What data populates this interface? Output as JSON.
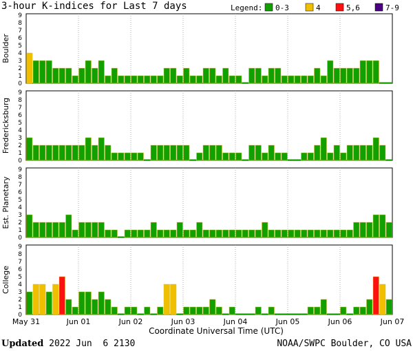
{
  "title": "3-hour K-indices for Last 7 days",
  "legend": {
    "label": "Legend:",
    "items": [
      {
        "label": "0-3",
        "color": "#11a000"
      },
      {
        "label": "4",
        "color": "#f0c000"
      },
      {
        "label": "5,6",
        "color": "#ff1010"
      },
      {
        "label": "7-9",
        "color": "#4b0082"
      }
    ]
  },
  "xlabel": "Coordinate Universal Time (UTC)",
  "footer": {
    "updated_label": "Updated",
    "updated_value": "2022 Jun  6 2130",
    "credit": "NOAA/SWPC Boulder, CO USA"
  },
  "chart_data": {
    "type": "bar",
    "x_ticks": [
      "May 31",
      "Jun 01",
      "Jun 02",
      "Jun 03",
      "Jun 04",
      "Jun 05",
      "Jun 06",
      "Jun 07"
    ],
    "ylim": [
      0,
      9
    ],
    "y_ticks": [
      0,
      1,
      2,
      3,
      4,
      5,
      6,
      7,
      8,
      9
    ],
    "panels": [
      {
        "name": "Boulder",
        "values": [
          4,
          3,
          3,
          3,
          2,
          2,
          2,
          1,
          2,
          3,
          2,
          3,
          1,
          2,
          1,
          1,
          1,
          1,
          1,
          1,
          1,
          2,
          2,
          1,
          2,
          1,
          1,
          2,
          2,
          1,
          2,
          1,
          1,
          0,
          2,
          2,
          1,
          2,
          2,
          1,
          1,
          1,
          1,
          1,
          2,
          1,
          3,
          2,
          2,
          2,
          2,
          3,
          3,
          3,
          0,
          0
        ]
      },
      {
        "name": "Fredericksburg",
        "values": [
          3,
          2,
          2,
          2,
          2,
          2,
          2,
          2,
          2,
          3,
          2,
          3,
          2,
          1,
          1,
          1,
          1,
          1,
          0,
          2,
          2,
          2,
          2,
          2,
          2,
          0,
          1,
          2,
          2,
          2,
          1,
          1,
          1,
          0,
          2,
          2,
          1,
          2,
          1,
          1,
          0,
          0,
          1,
          1,
          2,
          3,
          1,
          2,
          1,
          2,
          2,
          2,
          2,
          3,
          2,
          0
        ]
      },
      {
        "name": "Est. Planetary",
        "values": [
          3,
          2,
          2,
          2,
          2,
          2,
          3,
          1,
          2,
          2,
          2,
          2,
          1,
          1,
          0,
          1,
          1,
          1,
          1,
          2,
          1,
          1,
          1,
          2,
          1,
          1,
          2,
          1,
          1,
          1,
          1,
          1,
          1,
          1,
          1,
          1,
          2,
          1,
          1,
          1,
          1,
          1,
          1,
          1,
          1,
          1,
          1,
          1,
          1,
          1,
          2,
          2,
          2,
          3,
          3,
          2
        ]
      },
      {
        "name": "College",
        "values": [
          3,
          4,
          4,
          3,
          4,
          5,
          2,
          1,
          3,
          3,
          2,
          3,
          2,
          1,
          0,
          1,
          1,
          0,
          1,
          0,
          1,
          4,
          4,
          0,
          1,
          1,
          1,
          1,
          2,
          1,
          0,
          1,
          0,
          0,
          0,
          1,
          0,
          1,
          0,
          0,
          0,
          0,
          0,
          1,
          1,
          2,
          0,
          0,
          1,
          0,
          1,
          1,
          2,
          5,
          4,
          2,
          0,
          0
        ]
      }
    ]
  }
}
